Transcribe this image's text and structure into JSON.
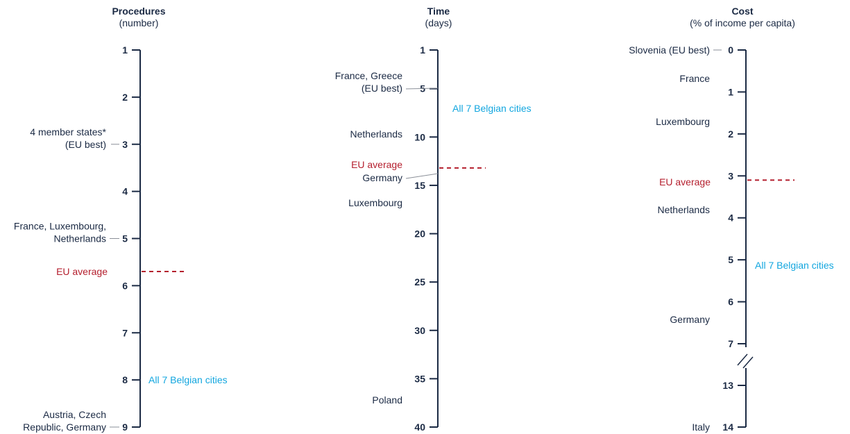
{
  "colors": {
    "axis": "#1b2a44",
    "text": "#1b2a44",
    "belgian": "#12a6df",
    "average": "#b41e2d"
  },
  "chart_data": [
    {
      "type": "axis",
      "title": "Procedures",
      "subtitle": "(number)",
      "ticks": [
        1,
        2,
        3,
        4,
        5,
        6,
        7,
        8,
        9
      ],
      "ylim": [
        1,
        9
      ],
      "labels": [
        {
          "text": [
            "4 member states*",
            "(EU best)"
          ],
          "value": 3,
          "category": "country"
        },
        {
          "text": [
            "France, Luxembourg,",
            "Netherlands"
          ],
          "value": 5,
          "category": "country"
        },
        {
          "text": [
            "EU average"
          ],
          "value": 5.7,
          "category": "eu-average"
        },
        {
          "text": [
            "All 7 Belgian cities"
          ],
          "value": 8,
          "category": "belgian-cities"
        },
        {
          "text": [
            "Austria, Czech",
            "Republic, Germany"
          ],
          "value": 9,
          "category": "country"
        }
      ]
    },
    {
      "type": "axis",
      "title": "Time",
      "subtitle": "(days)",
      "ticks": [
        1,
        5,
        10,
        15,
        20,
        25,
        30,
        35,
        40
      ],
      "ylim": [
        1,
        40
      ],
      "labels": [
        {
          "text": [
            "France, Greece",
            "(EU best)"
          ],
          "value": 5,
          "category": "country"
        },
        {
          "text": [
            "All 7 Belgian cities"
          ],
          "value": 5.5,
          "category": "belgian-cities"
        },
        {
          "text": [
            "Netherlands"
          ],
          "value": 10,
          "category": "country"
        },
        {
          "text": [
            "EU average"
          ],
          "value": 13.2,
          "category": "eu-average"
        },
        {
          "text": [
            "Germany"
          ],
          "value": 14,
          "category": "country"
        },
        {
          "text": [
            "Luxembourg"
          ],
          "value": 15,
          "category": "country"
        },
        {
          "text": [
            "Poland"
          ],
          "value": 40,
          "category": "country"
        }
      ]
    },
    {
      "type": "axis",
      "title": "Cost",
      "subtitle": "(% of income per capita)",
      "ticks": [
        0,
        1,
        2,
        3,
        4,
        5,
        6,
        7,
        13,
        14
      ],
      "ylim": [
        0,
        14
      ],
      "axis_break": [
        7,
        13
      ],
      "labels": [
        {
          "text": [
            "Slovenia (EU best)"
          ],
          "value": 0,
          "category": "country"
        },
        {
          "text": [
            "France"
          ],
          "value": 0.7,
          "category": "country"
        },
        {
          "text": [
            "Luxembourg"
          ],
          "value": 1.7,
          "category": "country"
        },
        {
          "text": [
            "EU average"
          ],
          "value": 3.1,
          "category": "eu-average"
        },
        {
          "text": [
            "Netherlands"
          ],
          "value": 3.8,
          "category": "country"
        },
        {
          "text": [
            "All 7 Belgian cities"
          ],
          "value": 5.1,
          "category": "belgian-cities"
        },
        {
          "text": [
            "Germany"
          ],
          "value": 6.4,
          "category": "country"
        },
        {
          "text": [
            "Italy"
          ],
          "value": 14,
          "category": "country"
        }
      ]
    }
  ]
}
